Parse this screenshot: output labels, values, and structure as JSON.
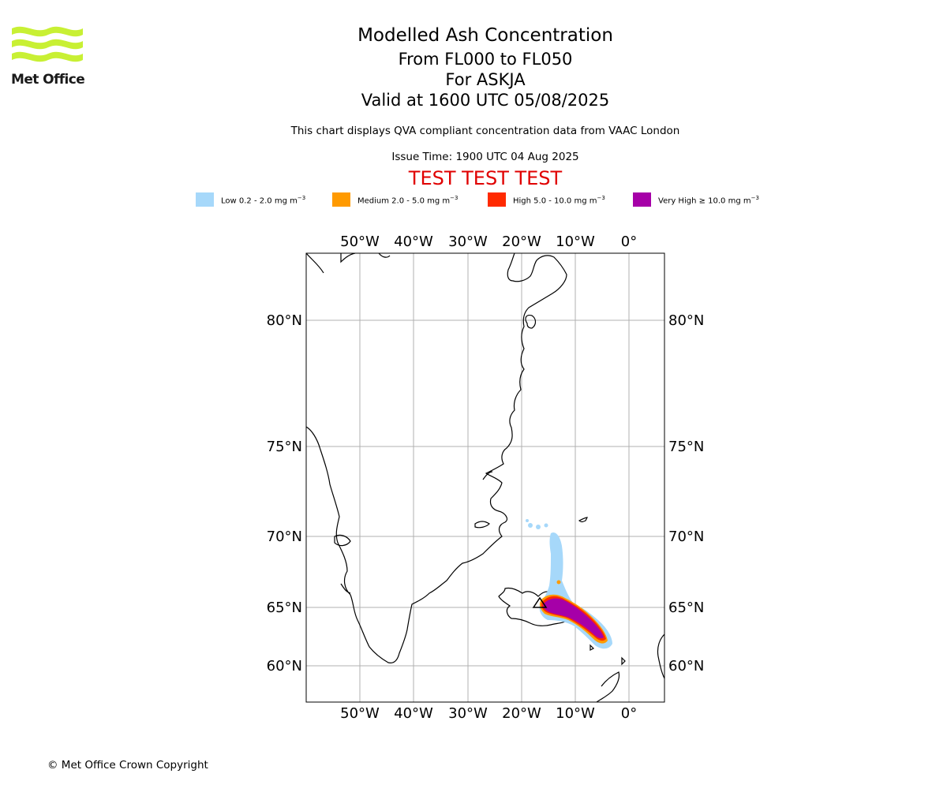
{
  "logo": {
    "name": "met-office-logo",
    "text": "Met Office",
    "color": "#c8f034"
  },
  "titles": {
    "main": "Modelled Ash Concentration",
    "levels": "From FL000 to FL050",
    "volcano": "For ASKJA",
    "valid": "Valid at 1600 UTC 05/08/2025"
  },
  "subtitle": "This chart displays QVA compliant concentration data from VAAC London",
  "issue_time": "Issue Time: 1900 UTC 04 Aug 2025",
  "test_banner": "TEST TEST TEST",
  "legend": [
    {
      "label": "Low 0.2 - 2.0 mg m",
      "exp": "−3",
      "color": "#a6d8fa"
    },
    {
      "label": "Medium 2.0 - 5.0 mg m",
      "exp": "−3",
      "color": "#ff9a00"
    },
    {
      "label": "High 5.0 - 10.0 mg m",
      "exp": "−3",
      "color": "#ff2a00"
    },
    {
      "label": "Very High  ≥  10.0 mg m",
      "exp": "−3",
      "color": "#a600a8"
    }
  ],
  "map": {
    "lon_labels": [
      "50°W",
      "40°W",
      "30°W",
      "20°W",
      "10°W",
      "0°"
    ],
    "lat_labels": [
      "80°N",
      "75°N",
      "70°N",
      "65°N",
      "60°N"
    ],
    "gridline_color": "#b0b0b0"
  },
  "copyright": "© Met Office Crown Copyright"
}
